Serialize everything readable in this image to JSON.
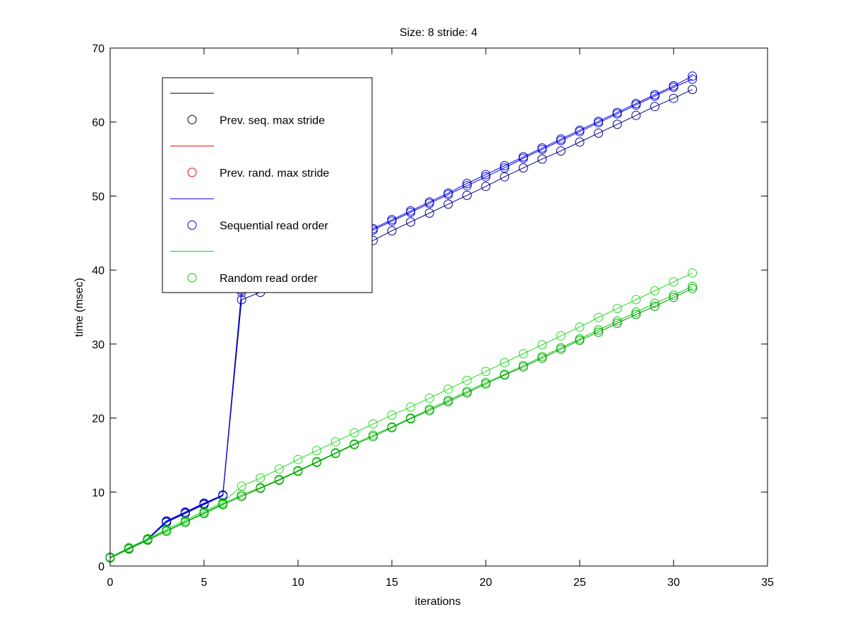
{
  "chart_data": {
    "type": "line",
    "title": "Size: 8 stride: 4",
    "xlabel": "iterations",
    "ylabel": "time (msec)",
    "xlim": [
      0,
      35
    ],
    "ylim": [
      0,
      70
    ],
    "xticks": [
      "0",
      "5",
      "10",
      "15",
      "20",
      "25",
      "30",
      "35"
    ],
    "yticks": [
      "0",
      "10",
      "20",
      "30",
      "40",
      "50",
      "60",
      "70"
    ],
    "grid": false,
    "legend_position": "upper-left",
    "marker": "circle",
    "legend": [
      {
        "label": "",
        "kind": "line",
        "color": "#000000"
      },
      {
        "label": "Prev. seq. max stride",
        "kind": "marker",
        "color": "#000000"
      },
      {
        "label": "",
        "kind": "line",
        "color": "#ff0000"
      },
      {
        "label": "Prev. rand. max stride",
        "kind": "marker",
        "color": "#ff0000"
      },
      {
        "label": "",
        "kind": "line",
        "color": "#0000ff"
      },
      {
        "label": "Sequential read order",
        "kind": "marker",
        "color": "#0000ff"
      },
      {
        "label": "",
        "kind": "line",
        "color": "#00cc00"
      },
      {
        "label": "Random read order",
        "kind": "marker",
        "color": "#00cc00"
      }
    ],
    "x": [
      0,
      1,
      2,
      3,
      4,
      5,
      6,
      7,
      8,
      9,
      10,
      11,
      12,
      13,
      14,
      15,
      16,
      17,
      18,
      19,
      20,
      21,
      22,
      23,
      24,
      25,
      26,
      27,
      28,
      29,
      30,
      31
    ],
    "series": [
      {
        "color": "#00008b",
        "values": [
          1.1,
          2.3,
          3.6,
          5.9,
          7.1,
          8.3,
          9.5,
          36.0,
          37.0,
          38.2,
          39.3,
          40.5,
          41.6,
          42.8,
          44.0,
          45.3,
          46.5,
          47.7,
          48.9,
          50.1,
          51.3,
          52.6,
          53.8,
          55.0,
          56.1,
          57.3,
          58.5,
          59.7,
          60.9,
          62.1,
          63.2,
          64.4
        ]
      },
      {
        "color": "#0000ff",
        "values": [
          1.2,
          2.4,
          3.7,
          6.1,
          7.3,
          8.5,
          9.6,
          37.0,
          38.1,
          39.3,
          40.5,
          41.7,
          42.9,
          44.1,
          45.4,
          46.6,
          47.8,
          49.0,
          50.2,
          51.4,
          52.6,
          53.8,
          55.1,
          56.3,
          57.5,
          58.7,
          59.9,
          61.1,
          62.3,
          63.5,
          64.7,
          65.8
        ]
      },
      {
        "color": "#0000cc",
        "values": [
          1.2,
          2.4,
          3.7,
          6.0,
          7.2,
          8.4,
          9.6,
          37.3,
          38.4,
          39.6,
          40.8,
          42.0,
          43.2,
          44.4,
          45.6,
          46.8,
          48.0,
          49.2,
          50.4,
          51.7,
          52.9,
          54.1,
          55.3,
          56.5,
          57.7,
          58.9,
          60.1,
          61.3,
          62.5,
          63.7,
          64.9,
          66.2
        ]
      },
      {
        "color": "#00cc00",
        "values": [
          1.2,
          2.4,
          3.6,
          4.8,
          6.0,
          7.2,
          8.4,
          9.6,
          10.6,
          11.7,
          12.9,
          14.1,
          15.3,
          16.5,
          17.7,
          18.8,
          20.0,
          21.2,
          22.4,
          23.6,
          24.8,
          25.9,
          27.1,
          28.3,
          29.5,
          30.7,
          31.9,
          33.1,
          34.3,
          35.5,
          36.6,
          37.8
        ]
      },
      {
        "color": "#22dd22",
        "values": [
          1.2,
          2.5,
          3.7,
          5.0,
          6.2,
          7.4,
          8.6,
          10.8,
          11.9,
          13.1,
          14.4,
          15.6,
          16.8,
          18.0,
          19.2,
          20.4,
          21.5,
          22.7,
          23.9,
          25.1,
          26.3,
          27.5,
          28.7,
          29.9,
          31.1,
          32.3,
          33.6,
          34.8,
          36.0,
          37.2,
          38.4,
          39.6
        ]
      },
      {
        "color": "#009900",
        "values": [
          1.1,
          2.3,
          3.5,
          4.7,
          5.9,
          7.1,
          8.3,
          9.4,
          10.5,
          11.6,
          12.8,
          14.0,
          15.2,
          16.4,
          17.5,
          18.7,
          19.9,
          21.0,
          22.2,
          23.4,
          24.6,
          25.8,
          26.9,
          28.1,
          29.3,
          30.5,
          31.6,
          32.8,
          34.0,
          35.1,
          36.3,
          37.5
        ]
      }
    ]
  }
}
